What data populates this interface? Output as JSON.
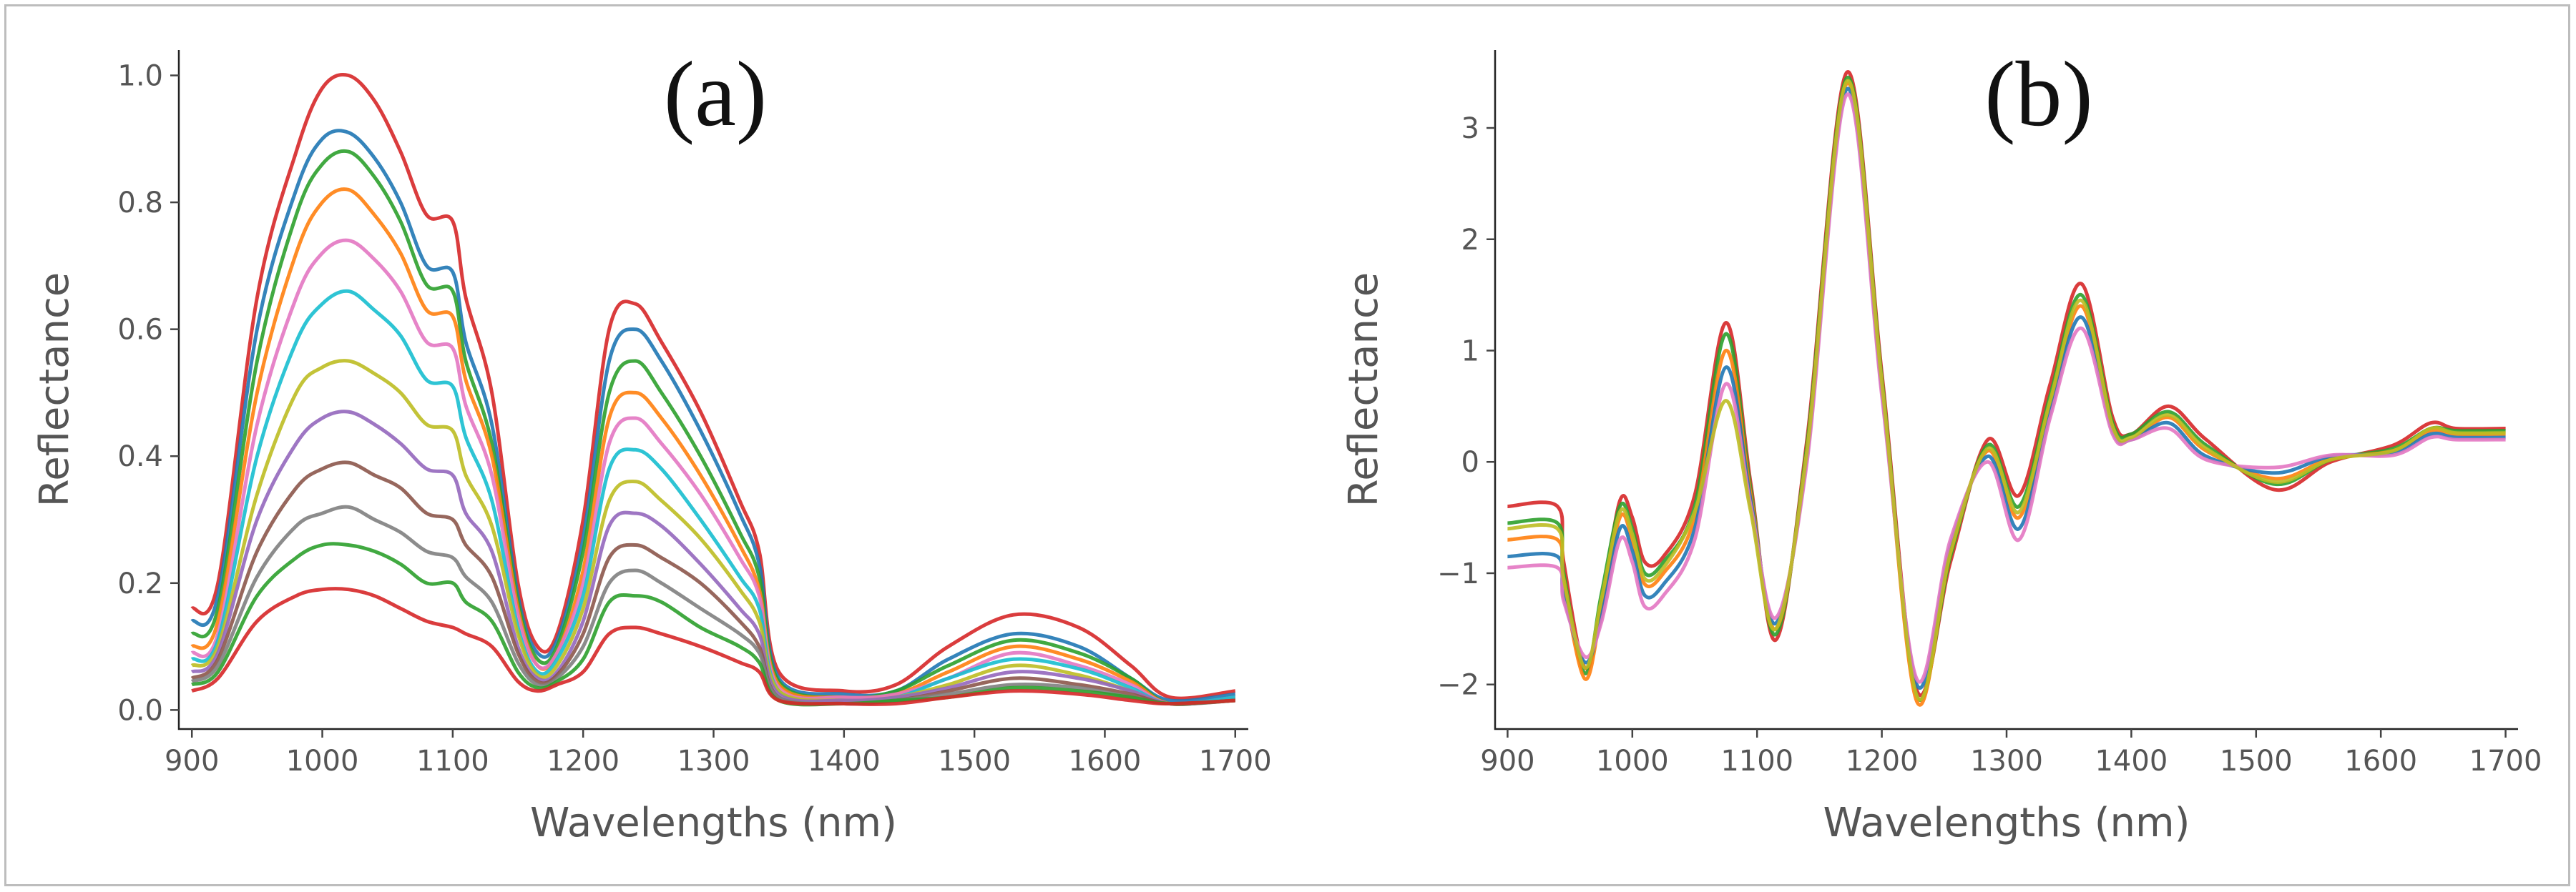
{
  "chart_data": [
    {
      "id": "a",
      "type": "line",
      "panel_label": "(a)",
      "xlabel": "Wavelengths (nm)",
      "ylabel": "Reflectance",
      "xlim": [
        890,
        1710
      ],
      "ylim": [
        -0.03,
        1.04
      ],
      "xticks": [
        900,
        1000,
        1100,
        1200,
        1300,
        1400,
        1500,
        1600,
        1700
      ],
      "xtick_labels": [
        "900",
        "1000",
        "1100",
        "1200",
        "1300",
        "1400",
        "1500",
        "1600",
        "1700"
      ],
      "yticks": [
        0.0,
        0.2,
        0.4,
        0.6,
        0.8,
        1.0
      ],
      "ytick_labels": [
        "0.0",
        "0.2",
        "0.4",
        "0.6",
        "0.8",
        "1.0"
      ],
      "grid": false,
      "series_count_note": "many overlapping spectra; representative curves recreated",
      "x": [
        900,
        920,
        950,
        980,
        1000,
        1020,
        1040,
        1060,
        1080,
        1100,
        1110,
        1130,
        1150,
        1165,
        1180,
        1200,
        1220,
        1240,
        1260,
        1290,
        1320,
        1335,
        1350,
        1400,
        1440,
        1480,
        1530,
        1580,
        1620,
        1650,
        1700
      ],
      "series": [
        {
          "name": "s1",
          "color": "#d62728",
          "values": [
            0.16,
            0.2,
            0.65,
            0.88,
            0.98,
            1.0,
            0.96,
            0.88,
            0.78,
            0.77,
            0.65,
            0.5,
            0.2,
            0.1,
            0.12,
            0.3,
            0.6,
            0.64,
            0.58,
            0.47,
            0.33,
            0.25,
            0.06,
            0.03,
            0.04,
            0.1,
            0.15,
            0.13,
            0.07,
            0.02,
            0.03
          ]
        },
        {
          "name": "s2",
          "color": "#1f77b4",
          "values": [
            0.14,
            0.18,
            0.6,
            0.82,
            0.9,
            0.91,
            0.87,
            0.8,
            0.7,
            0.69,
            0.58,
            0.45,
            0.18,
            0.09,
            0.11,
            0.27,
            0.55,
            0.6,
            0.55,
            0.44,
            0.31,
            0.23,
            0.05,
            0.025,
            0.03,
            0.08,
            0.12,
            0.1,
            0.05,
            0.015,
            0.025
          ]
        },
        {
          "name": "s3",
          "color": "#2ca02c",
          "values": [
            0.12,
            0.16,
            0.55,
            0.78,
            0.86,
            0.88,
            0.84,
            0.77,
            0.67,
            0.66,
            0.55,
            0.42,
            0.17,
            0.08,
            0.1,
            0.25,
            0.5,
            0.55,
            0.5,
            0.4,
            0.28,
            0.21,
            0.045,
            0.02,
            0.03,
            0.07,
            0.11,
            0.09,
            0.05,
            0.01,
            0.02
          ]
        },
        {
          "name": "s4",
          "color": "#ff7f0e",
          "values": [
            0.1,
            0.14,
            0.5,
            0.72,
            0.8,
            0.82,
            0.78,
            0.72,
            0.63,
            0.62,
            0.52,
            0.4,
            0.16,
            0.07,
            0.09,
            0.22,
            0.46,
            0.5,
            0.46,
            0.37,
            0.26,
            0.19,
            0.04,
            0.02,
            0.025,
            0.06,
            0.1,
            0.08,
            0.045,
            0.01,
            0.02
          ]
        },
        {
          "name": "s5",
          "color": "#e377c2",
          "values": [
            0.09,
            0.12,
            0.45,
            0.65,
            0.72,
            0.74,
            0.71,
            0.66,
            0.58,
            0.57,
            0.48,
            0.37,
            0.15,
            0.07,
            0.09,
            0.2,
            0.42,
            0.46,
            0.42,
            0.34,
            0.24,
            0.18,
            0.035,
            0.02,
            0.025,
            0.05,
            0.09,
            0.07,
            0.04,
            0.01,
            0.02
          ]
        },
        {
          "name": "s6",
          "color": "#17becf",
          "values": [
            0.08,
            0.11,
            0.4,
            0.58,
            0.64,
            0.66,
            0.63,
            0.59,
            0.52,
            0.51,
            0.43,
            0.33,
            0.13,
            0.06,
            0.08,
            0.18,
            0.38,
            0.41,
            0.38,
            0.3,
            0.21,
            0.16,
            0.03,
            0.015,
            0.02,
            0.05,
            0.08,
            0.065,
            0.035,
            0.01,
            0.02
          ]
        },
        {
          "name": "s7",
          "color": "#bcbd22",
          "values": [
            0.07,
            0.1,
            0.34,
            0.5,
            0.54,
            0.55,
            0.53,
            0.5,
            0.45,
            0.44,
            0.37,
            0.29,
            0.12,
            0.055,
            0.07,
            0.16,
            0.33,
            0.36,
            0.33,
            0.27,
            0.19,
            0.14,
            0.03,
            0.015,
            0.02,
            0.04,
            0.07,
            0.055,
            0.03,
            0.01,
            0.015
          ]
        },
        {
          "name": "s8",
          "color": "#9467bd",
          "values": [
            0.06,
            0.09,
            0.3,
            0.42,
            0.46,
            0.47,
            0.45,
            0.42,
            0.38,
            0.37,
            0.31,
            0.25,
            0.1,
            0.05,
            0.06,
            0.14,
            0.29,
            0.31,
            0.29,
            0.23,
            0.16,
            0.12,
            0.025,
            0.015,
            0.02,
            0.035,
            0.06,
            0.05,
            0.03,
            0.01,
            0.015
          ]
        },
        {
          "name": "s9",
          "color": "#8c564b",
          "values": [
            0.05,
            0.08,
            0.25,
            0.35,
            0.38,
            0.39,
            0.37,
            0.35,
            0.31,
            0.3,
            0.26,
            0.21,
            0.09,
            0.045,
            0.055,
            0.12,
            0.24,
            0.26,
            0.24,
            0.2,
            0.14,
            0.1,
            0.02,
            0.01,
            0.015,
            0.03,
            0.05,
            0.04,
            0.025,
            0.01,
            0.015
          ]
        },
        {
          "name": "s10",
          "color": "#7f7f7f",
          "values": [
            0.045,
            0.07,
            0.21,
            0.29,
            0.31,
            0.32,
            0.3,
            0.28,
            0.25,
            0.24,
            0.21,
            0.17,
            0.075,
            0.04,
            0.05,
            0.1,
            0.2,
            0.22,
            0.2,
            0.16,
            0.12,
            0.09,
            0.02,
            0.01,
            0.015,
            0.025,
            0.04,
            0.035,
            0.02,
            0.01,
            0.015
          ]
        },
        {
          "name": "s11",
          "color": "#2ca02c",
          "values": [
            0.04,
            0.06,
            0.18,
            0.24,
            0.26,
            0.26,
            0.25,
            0.23,
            0.2,
            0.2,
            0.17,
            0.14,
            0.06,
            0.035,
            0.045,
            0.08,
            0.17,
            0.18,
            0.17,
            0.13,
            0.1,
            0.075,
            0.015,
            0.01,
            0.015,
            0.02,
            0.035,
            0.03,
            0.02,
            0.01,
            0.015
          ]
        },
        {
          "name": "s12",
          "color": "#d62728",
          "values": [
            0.03,
            0.05,
            0.14,
            0.18,
            0.19,
            0.19,
            0.18,
            0.16,
            0.14,
            0.13,
            0.12,
            0.1,
            0.045,
            0.03,
            0.04,
            0.06,
            0.12,
            0.13,
            0.12,
            0.1,
            0.075,
            0.06,
            0.015,
            0.01,
            0.01,
            0.02,
            0.03,
            0.025,
            0.015,
            0.01,
            0.015
          ]
        }
      ]
    },
    {
      "id": "b",
      "type": "line",
      "panel_label": "(b)",
      "xlabel": "Wavelengths (nm)",
      "ylabel": "Reflectance",
      "xlim": [
        890,
        1710
      ],
      "ylim": [
        -2.4,
        3.7
      ],
      "xticks": [
        900,
        1000,
        1100,
        1200,
        1300,
        1400,
        1500,
        1600,
        1700
      ],
      "xtick_labels": [
        "900",
        "1000",
        "1100",
        "1200",
        "1300",
        "1400",
        "1500",
        "1600",
        "1700"
      ],
      "yticks": [
        -2,
        -1,
        0,
        1,
        2,
        3
      ],
      "ytick_labels": [
        "−2",
        "−1",
        "0",
        "1",
        "2",
        "3"
      ],
      "grid": false,
      "series_count_note": "many overlapping SNV/derivative spectra; representative curves recreated",
      "x": [
        900,
        940,
        945,
        962,
        975,
        990,
        1000,
        1010,
        1025,
        1050,
        1075,
        1095,
        1115,
        1140,
        1172,
        1200,
        1228,
        1255,
        1285,
        1310,
        1335,
        1360,
        1385,
        1400,
        1430,
        1460,
        1515,
        1560,
        1610,
        1640,
        1660,
        1700
      ],
      "series": [
        {
          "name": "s1",
          "color": "#d62728",
          "values": [
            -0.4,
            -0.4,
            -0.9,
            -1.85,
            -1.3,
            -0.35,
            -0.5,
            -0.9,
            -0.85,
            -0.3,
            1.25,
            -0.2,
            -1.6,
            0.2,
            3.5,
            0.8,
            -2.05,
            -0.9,
            0.2,
            -0.3,
            0.7,
            1.6,
            0.4,
            0.25,
            0.5,
            0.2,
            -0.25,
            0.0,
            0.15,
            0.35,
            0.3,
            0.3
          ]
        },
        {
          "name": "s2",
          "color": "#2ca02c",
          "values": [
            -0.55,
            -0.55,
            -1.0,
            -1.9,
            -1.2,
            -0.4,
            -0.6,
            -1.0,
            -0.9,
            -0.4,
            1.15,
            -0.25,
            -1.55,
            0.15,
            3.45,
            0.75,
            -2.1,
            -0.85,
            0.15,
            -0.4,
            0.6,
            1.5,
            0.35,
            0.25,
            0.45,
            0.15,
            -0.2,
            0.02,
            0.12,
            0.3,
            0.28,
            0.28
          ]
        },
        {
          "name": "s3",
          "color": "#ff7f0e",
          "values": [
            -0.7,
            -0.7,
            -1.1,
            -1.95,
            -1.35,
            -0.5,
            -0.7,
            -1.1,
            -1.0,
            -0.5,
            1.0,
            -0.3,
            -1.5,
            0.1,
            3.4,
            0.7,
            -2.15,
            -0.8,
            0.1,
            -0.5,
            0.5,
            1.4,
            0.3,
            0.2,
            0.4,
            0.1,
            -0.15,
            0.03,
            0.1,
            0.28,
            0.25,
            0.25
          ]
        },
        {
          "name": "s4",
          "color": "#1f77b4",
          "values": [
            -0.85,
            -0.85,
            -1.2,
            -1.8,
            -1.4,
            -0.6,
            -0.8,
            -1.2,
            -1.1,
            -0.6,
            0.85,
            -0.35,
            -1.45,
            0.05,
            3.35,
            0.65,
            -2.0,
            -0.75,
            0.05,
            -0.6,
            0.45,
            1.3,
            0.28,
            0.2,
            0.35,
            0.05,
            -0.1,
            0.05,
            0.08,
            0.25,
            0.22,
            0.22
          ]
        },
        {
          "name": "s5",
          "color": "#e377c2",
          "values": [
            -0.95,
            -0.95,
            -1.25,
            -1.75,
            -1.45,
            -0.7,
            -0.9,
            -1.3,
            -1.2,
            -0.7,
            0.7,
            -0.4,
            -1.4,
            0.0,
            3.3,
            0.6,
            -1.95,
            -0.7,
            0.0,
            -0.7,
            0.4,
            1.2,
            0.25,
            0.2,
            0.3,
            0.02,
            -0.05,
            0.06,
            0.06,
            0.22,
            0.2,
            0.2
          ]
        },
        {
          "name": "s6",
          "color": "#bcbd22",
          "values": [
            -0.6,
            -0.6,
            -1.05,
            -1.85,
            -1.25,
            -0.45,
            -0.65,
            -1.05,
            -0.95,
            -0.45,
            0.55,
            -0.45,
            -1.5,
            0.1,
            3.42,
            0.72,
            -2.1,
            -0.82,
            0.12,
            -0.45,
            0.55,
            1.45,
            0.32,
            0.22,
            0.42,
            0.12,
            -0.18,
            0.02,
            0.1,
            0.3,
            0.26,
            0.26
          ]
        }
      ]
    }
  ]
}
